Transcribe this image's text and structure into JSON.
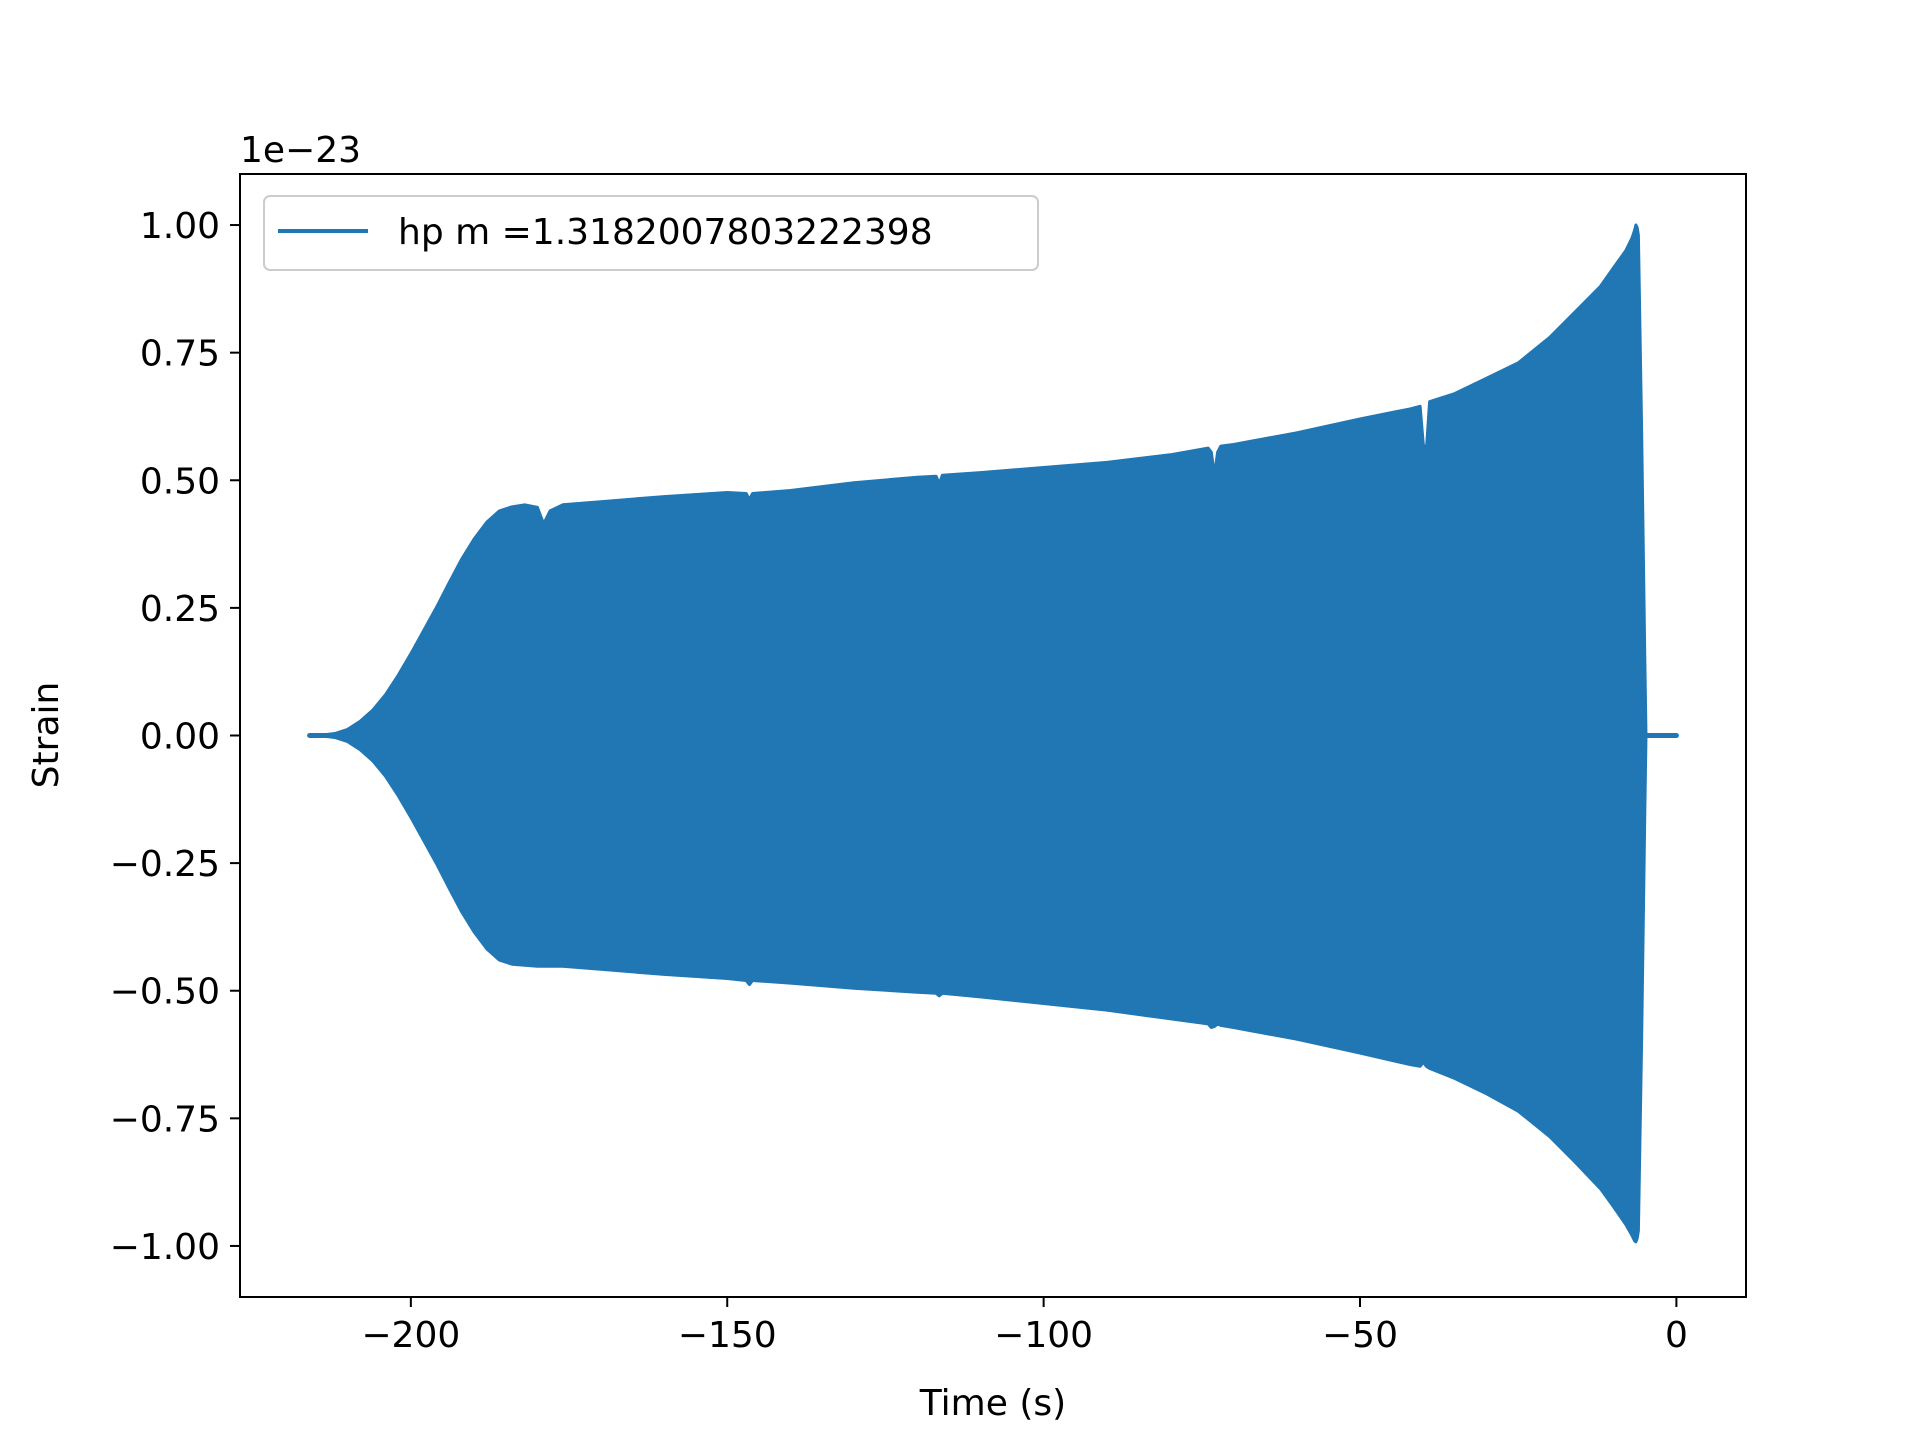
{
  "chart_data": {
    "type": "area",
    "xlabel": "Time (s)",
    "ylabel": "Strain",
    "y_offset_label": "1e−23",
    "xlim": [
      -227,
      11
    ],
    "ylim": [
      -1.1,
      1.1
    ],
    "x_ticks": [
      -200,
      -150,
      -100,
      -50,
      0
    ],
    "x_tick_labels": [
      "−200",
      "−150",
      "−100",
      "−50",
      "0"
    ],
    "y_ticks": [
      1.0,
      0.75,
      0.5,
      0.25,
      0.0,
      -0.25,
      -0.5,
      -0.75,
      -1.0
    ],
    "y_tick_labels": [
      "1.00",
      "0.75",
      "0.50",
      "0.25",
      "0.00",
      "−0.25",
      "−0.50",
      "−0.75",
      "−1.00"
    ],
    "grid": false,
    "legend_position": "upper-left",
    "colors": {
      "series": "#2077b4",
      "axes": "#000000",
      "legend_border": "#cccccc"
    },
    "series": [
      {
        "name": "hp m =1.3182007803222398",
        "envelope": {
          "x": [
            -216,
            -214,
            -212,
            -210,
            -208,
            -206,
            -204,
            -202,
            -200,
            -198,
            -196,
            -194,
            -192,
            -190,
            -188,
            -186,
            -184,
            -182,
            -180,
            -179.5,
            -179,
            -178,
            -176,
            -170,
            -160,
            -150,
            -147,
            -146.5,
            -146,
            -140,
            -130,
            -120,
            -117,
            -116.5,
            -116,
            -110,
            -100,
            -90,
            -80,
            -74,
            -73.5,
            -73,
            -72.5,
            -72,
            -70,
            -60,
            -50,
            -42,
            -40.5,
            -40,
            -39.5,
            -39,
            -35,
            -30,
            -25,
            -20,
            -16,
            -12,
            -10,
            -8,
            -7,
            -6.6,
            -6.4,
            -6.2,
            -6,
            -5.5,
            -5,
            -4.8,
            -5.0,
            -4.5,
            -3,
            -1,
            0
          ],
          "upper": [
            0.0,
            0.001,
            0.004,
            0.012,
            0.028,
            0.05,
            0.08,
            0.118,
            0.16,
            0.205,
            0.25,
            0.298,
            0.345,
            0.385,
            0.418,
            0.44,
            0.448,
            0.452,
            0.447,
            0.43,
            0.415,
            0.44,
            0.452,
            0.458,
            0.468,
            0.476,
            0.474,
            0.462,
            0.474,
            0.48,
            0.495,
            0.506,
            0.508,
            0.493,
            0.51,
            0.515,
            0.525,
            0.535,
            0.55,
            0.563,
            0.555,
            0.51,
            0.555,
            0.567,
            0.57,
            0.593,
            0.62,
            0.64,
            0.645,
            0.57,
            0.56,
            0.654,
            0.67,
            0.7,
            0.73,
            0.78,
            0.83,
            0.88,
            0.915,
            0.95,
            0.975,
            0.99,
            1.0,
            0.995,
            0.98,
            0.6,
            0.15,
            0.0,
            0.0,
            0.0,
            0.0,
            0.0,
            0.0
          ],
          "lower": [
            0.0,
            -0.001,
            -0.004,
            -0.012,
            -0.028,
            -0.05,
            -0.08,
            -0.118,
            -0.16,
            -0.205,
            -0.25,
            -0.298,
            -0.345,
            -0.385,
            -0.418,
            -0.44,
            -0.448,
            -0.45,
            -0.452,
            -0.452,
            -0.452,
            -0.452,
            -0.452,
            -0.458,
            -0.468,
            -0.476,
            -0.48,
            -0.488,
            -0.48,
            -0.485,
            -0.495,
            -0.503,
            -0.505,
            -0.51,
            -0.505,
            -0.512,
            -0.525,
            -0.538,
            -0.555,
            -0.565,
            -0.572,
            -0.57,
            -0.565,
            -0.568,
            -0.572,
            -0.595,
            -0.622,
            -0.645,
            -0.648,
            -0.64,
            -0.648,
            -0.652,
            -0.672,
            -0.702,
            -0.736,
            -0.786,
            -0.836,
            -0.888,
            -0.922,
            -0.958,
            -0.98,
            -0.99,
            -0.992,
            -0.985,
            -0.97,
            -0.6,
            -0.15,
            0.0,
            0.0,
            0.0,
            0.0,
            0.0,
            0.0
          ]
        }
      }
    ]
  }
}
